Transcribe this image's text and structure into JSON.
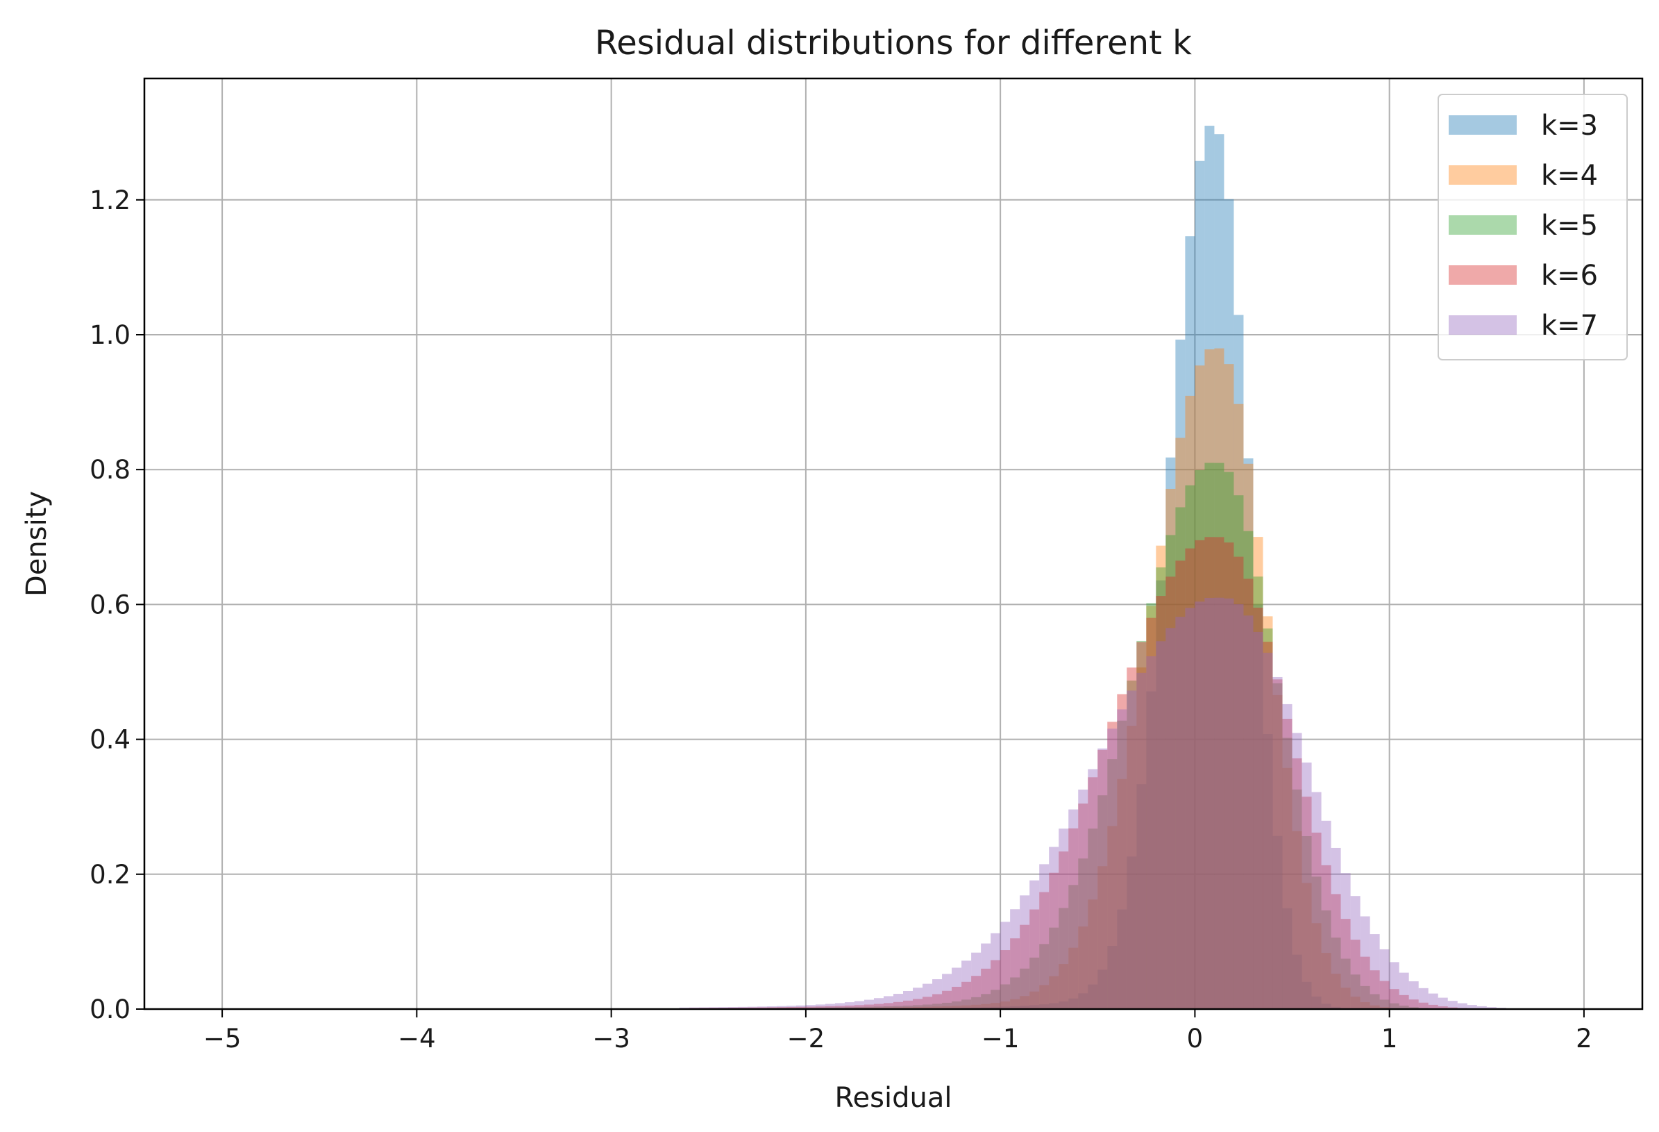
{
  "chart_data": {
    "type": "histogram",
    "title": "Residual distributions for different k",
    "xlabel": "Residual",
    "ylabel": "Density",
    "xlim": [
      -5.4,
      2.3
    ],
    "ylim": [
      0,
      1.38
    ],
    "xticks": [
      -5,
      -4,
      -3,
      -2,
      -1,
      0,
      1,
      2
    ],
    "xtick_labels": [
      "−5",
      "−4",
      "−3",
      "−2",
      "−1",
      "0",
      "1",
      "2"
    ],
    "yticks": [
      0.0,
      0.2,
      0.4,
      0.6,
      0.8,
      1.0,
      1.2
    ],
    "ytick_labels": [
      "0.0",
      "0.2",
      "0.4",
      "0.6",
      "0.8",
      "1.0",
      "1.2"
    ],
    "grid": true,
    "legend_position": "top-right",
    "bin_width": 0.05,
    "series": [
      {
        "name": "k=3",
        "color": "#1f77b4",
        "opacity": 0.4,
        "peak_x": 0.1,
        "peak_density": 1.31,
        "sigma_left": 0.22,
        "sigma_right": 0.18,
        "support": [
          -2.2,
          1.3
        ]
      },
      {
        "name": "k=4",
        "color": "#ff7f0e",
        "opacity": 0.4,
        "peak_x": 0.12,
        "peak_density": 0.98,
        "sigma_left": 0.33,
        "sigma_right": 0.25,
        "support": [
          -2.4,
          1.5
        ]
      },
      {
        "name": "k=5",
        "color": "#2ca02c",
        "opacity": 0.4,
        "peak_x": 0.12,
        "peak_density": 0.81,
        "sigma_left": 0.42,
        "sigma_right": 0.3,
        "support": [
          -2.5,
          1.6
        ]
      },
      {
        "name": "k=6",
        "color": "#d62728",
        "opacity": 0.4,
        "peak_x": 0.12,
        "peak_density": 0.7,
        "sigma_left": 0.52,
        "sigma_right": 0.36,
        "support": [
          -2.6,
          1.7
        ]
      },
      {
        "name": "k=7",
        "color": "#9467bd",
        "opacity": 0.4,
        "peak_x": 0.15,
        "peak_density": 0.61,
        "sigma_left": 0.62,
        "sigma_right": 0.42,
        "support": [
          -2.65,
          1.8
        ]
      }
    ]
  }
}
